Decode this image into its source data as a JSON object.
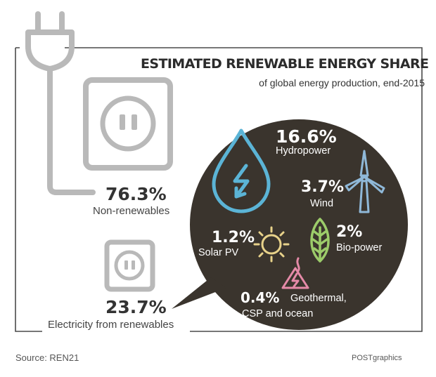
{
  "header": {
    "title": "ESTIMATED RENEWABLE ENERGY SHARE",
    "subtitle": "of global energy production, end-2015"
  },
  "non_renewables": {
    "value": "76.3%",
    "label": "Non-renewables"
  },
  "renewables_total": {
    "value": "23.7%",
    "label": "Electricity from renewables"
  },
  "bubble": {
    "hydro": {
      "value": "16.6%",
      "label": "Hydropower",
      "icon": "water-drop-icon",
      "color": "#5bb4d6"
    },
    "wind": {
      "value": "3.7%",
      "label": "Wind",
      "icon": "wind-turbine-icon",
      "color": "#8fb8d8"
    },
    "solar": {
      "value": "1.2%",
      "label": "Solar PV",
      "icon": "sun-icon",
      "color": "#e8d28a"
    },
    "bio": {
      "value": "2%",
      "label": "Bio-power",
      "icon": "leaf-icon",
      "color": "#9ccc6a"
    },
    "geo": {
      "value": "0.4%",
      "label_line1": "Geothermal,",
      "label_line2": "CSP and ocean",
      "icon": "geothermal-icon",
      "color": "#e58aa8"
    }
  },
  "footer": {
    "source": "Source: REN21",
    "credit": "POSTgraphics"
  },
  "colors": {
    "bubble_bg": "#3a342d",
    "socket_gray": "#b9b9b9",
    "frame": "#4a4a4a"
  }
}
